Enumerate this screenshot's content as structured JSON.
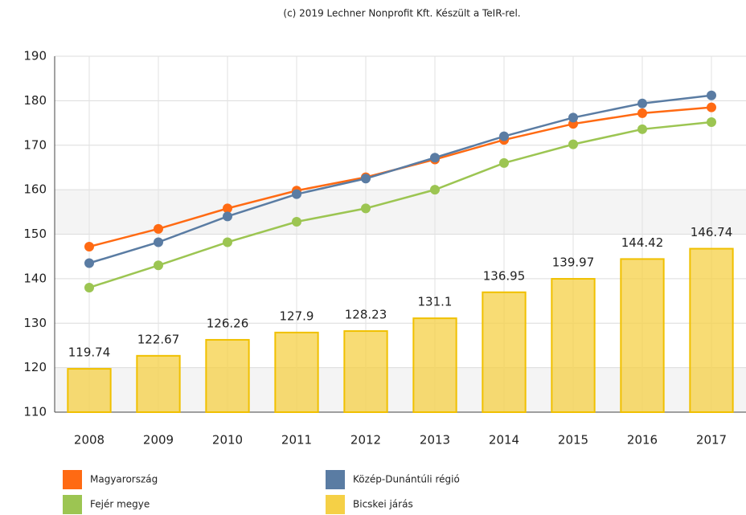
{
  "chart_data": {
    "type": "bar-line",
    "title": "(c) 2019 Lechner Nonprofit Kft. Készült a TeIR-rel.",
    "categories": [
      "2008",
      "2009",
      "2010",
      "2011",
      "2012",
      "2013",
      "2014",
      "2015",
      "2016",
      "2017"
    ],
    "series": [
      {
        "name": "Magyarország",
        "color": "#ff6a13",
        "type": "line",
        "values": [
          147.2,
          151.2,
          155.8,
          159.8,
          162.8,
          166.8,
          171.2,
          174.8,
          177.2,
          178.5
        ]
      },
      {
        "name": "Közép-Dunántúli régió",
        "color": "#5a7ca3",
        "type": "line",
        "values": [
          143.5,
          148.2,
          154.0,
          159.0,
          162.5,
          167.2,
          172.0,
          176.2,
          179.4,
          181.2
        ]
      },
      {
        "name": "Fejér megye",
        "color": "#9cc552",
        "type": "line",
        "values": [
          138.0,
          143.0,
          148.2,
          152.8,
          155.8,
          160.0,
          166.0,
          170.2,
          173.6,
          175.2
        ]
      },
      {
        "name": "Bicskei járás",
        "color": "#f5d046",
        "type": "bar",
        "values": [
          119.74,
          122.67,
          126.26,
          127.9,
          128.23,
          131.1,
          136.95,
          139.97,
          144.42,
          146.74
        ]
      }
    ],
    "ylim": [
      110,
      190
    ],
    "yticks": [
      110,
      120,
      130,
      140,
      150,
      160,
      170,
      180,
      190
    ],
    "grid": true
  }
}
